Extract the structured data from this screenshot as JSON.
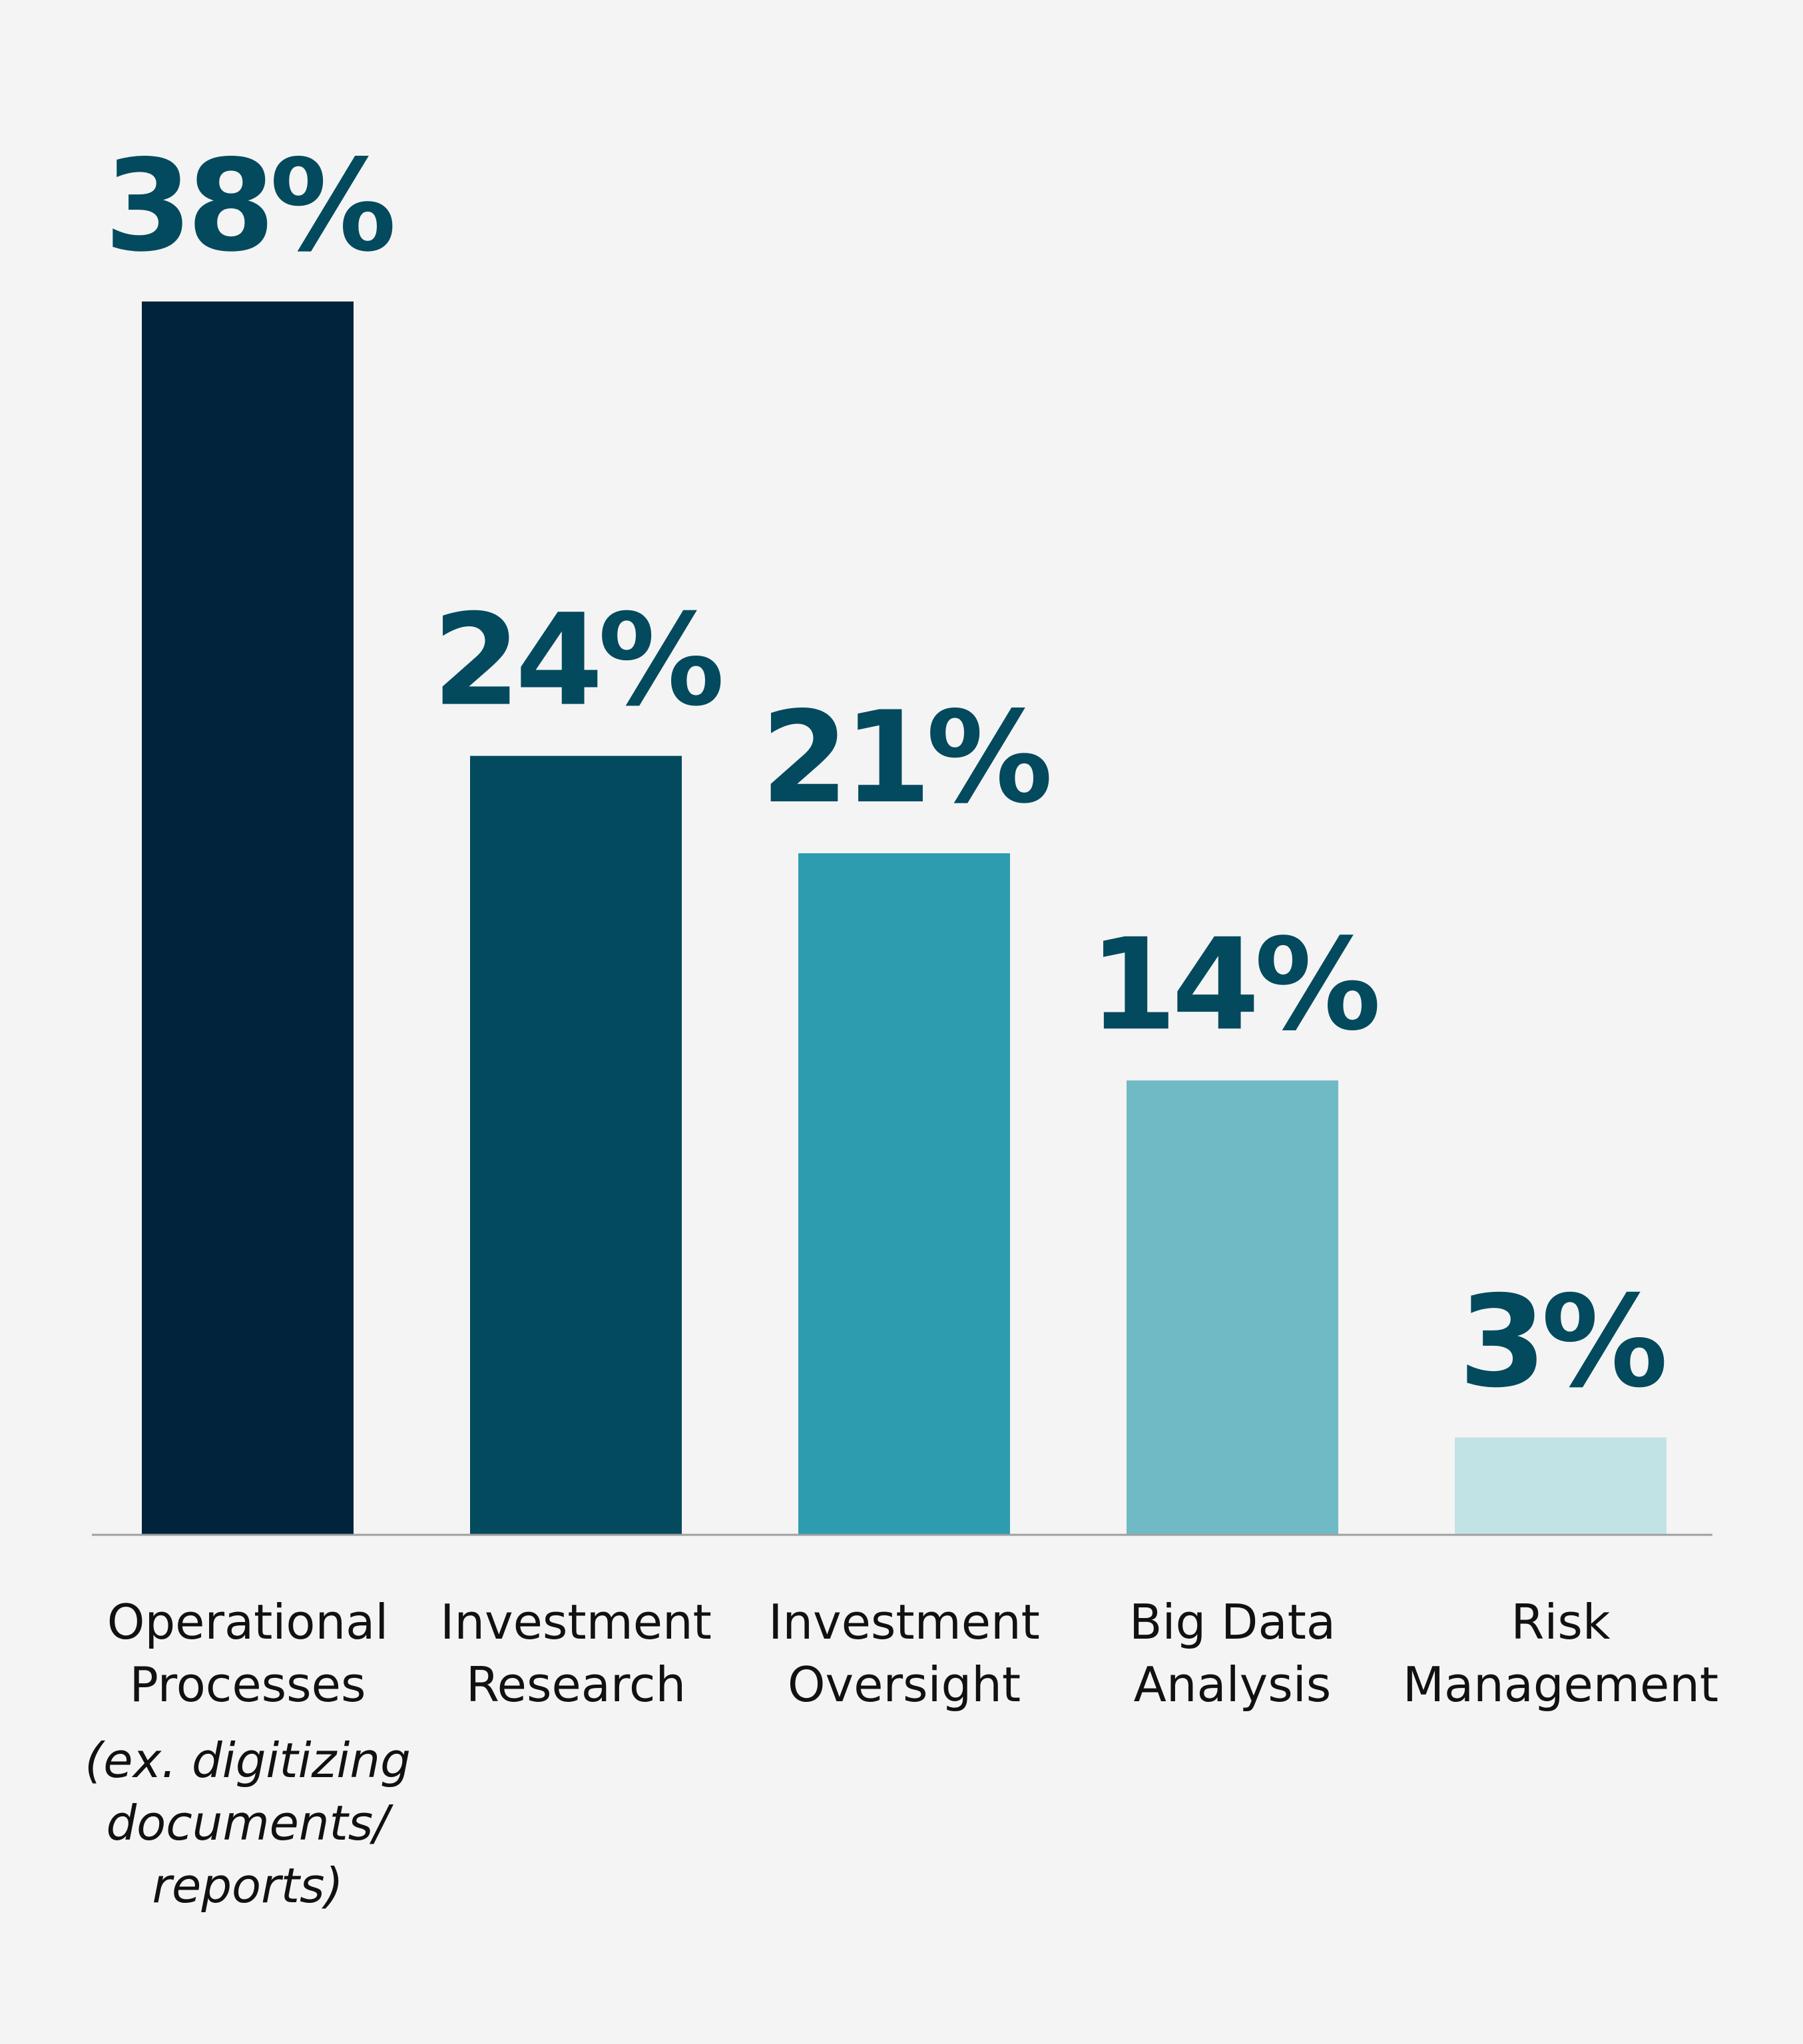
{
  "chart_data": {
    "type": "bar",
    "title": "",
    "xlabel": "",
    "ylabel": "",
    "ylim": [
      0,
      38
    ],
    "grid": false,
    "categories": [
      {
        "lines": [
          "Operational",
          "Processes"
        ],
        "note": [
          "(ex. digitizing",
          "documents/",
          "reports)"
        ],
        "value": 38,
        "value_label": "38%",
        "color": "#01233b"
      },
      {
        "lines": [
          "Investment",
          "Research"
        ],
        "note": [],
        "value": 24,
        "value_label": "24%",
        "color": "#034a5e"
      },
      {
        "lines": [
          "Investment",
          "Oversight"
        ],
        "note": [],
        "value": 21,
        "value_label": "21%",
        "color": "#2e9caf"
      },
      {
        "lines": [
          "Big Data",
          "Analysis"
        ],
        "note": [],
        "value": 14,
        "value_label": "14%",
        "color": "#6fbac5"
      },
      {
        "lines": [
          "Risk",
          "Management"
        ],
        "note": [],
        "value": 3,
        "value_label": "3%",
        "color": "#c2e3e6"
      }
    ]
  }
}
